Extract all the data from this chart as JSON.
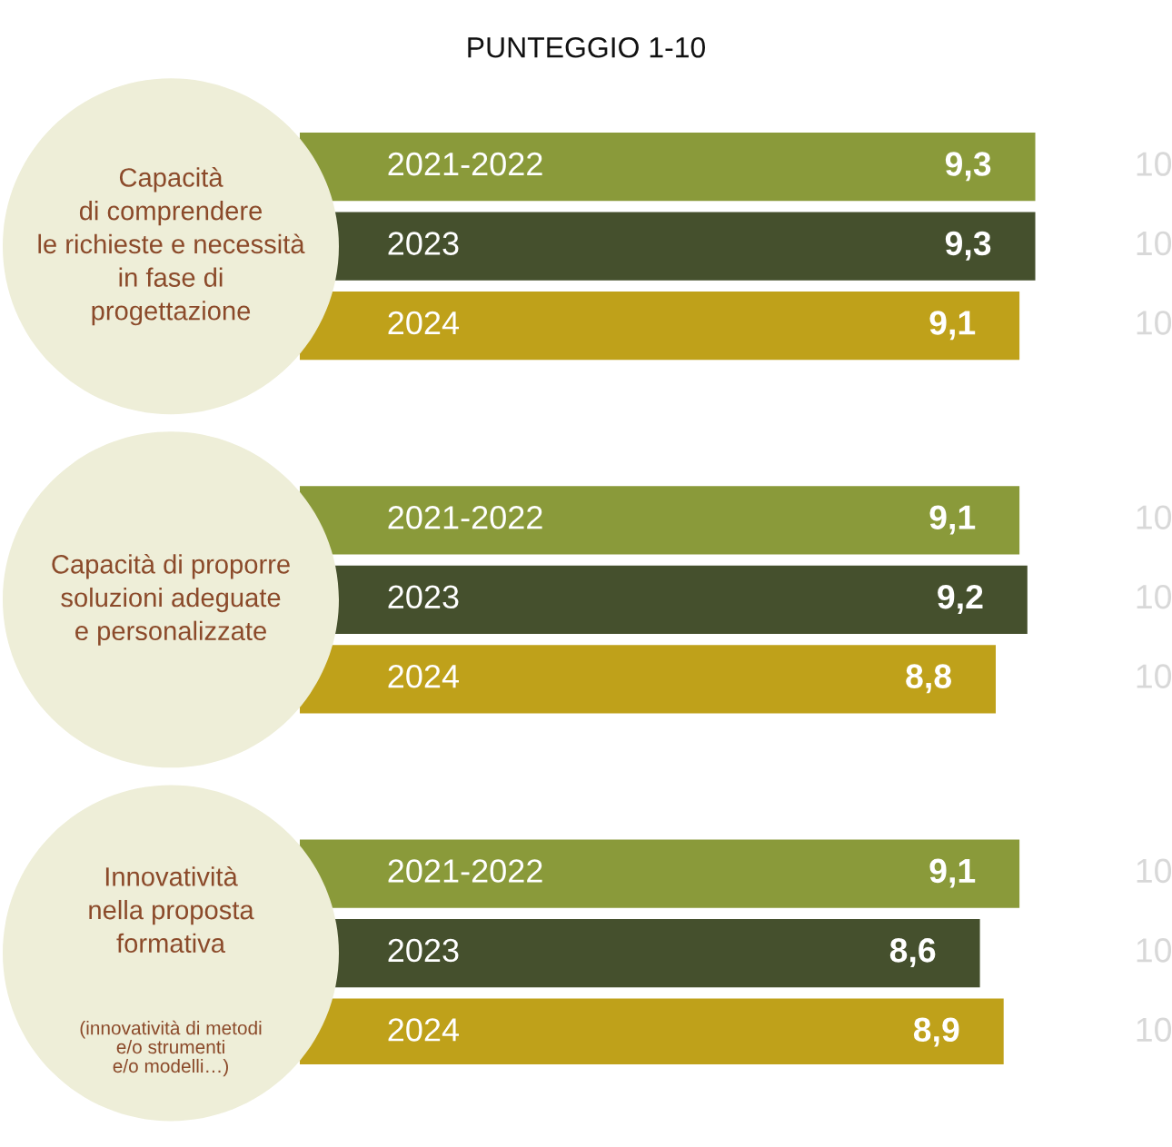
{
  "chart_data": {
    "type": "bar",
    "orientation": "horizontal",
    "title": "PUNTEGGIO 1-10",
    "categories": [
      "Capacità\ndi comprendere\nle richieste e necessità\nin fase di\nprogettazione",
      "Capacità di proporre\nsoluzioni adeguate\ne personalizzate",
      "Innovatività\nnella proposta\nformativa"
    ],
    "series": [
      {
        "name": "2021-2022",
        "color": "#8a9a3a",
        "values": [
          9.3,
          9.1,
          9.1
        ],
        "value_labels": [
          "9,3",
          "9,1",
          "9,1"
        ]
      },
      {
        "name": "2023",
        "color": "#45502d",
        "values": [
          9.3,
          9.2,
          8.6
        ],
        "value_labels": [
          "9,3",
          "9,2",
          "8,6"
        ]
      },
      {
        "name": "2024",
        "color": "#bfa11a",
        "values": [
          9.1,
          8.8,
          8.9
        ],
        "value_labels": [
          "9,1",
          "8,8",
          "8,9"
        ]
      }
    ],
    "annotations": [
      "10",
      "10",
      "10",
      "10",
      "10",
      "10",
      "10",
      "10",
      "10",
      "(innovatività di metodi\ne/o strumenti\ne/o modelli…)"
    ]
  }
}
